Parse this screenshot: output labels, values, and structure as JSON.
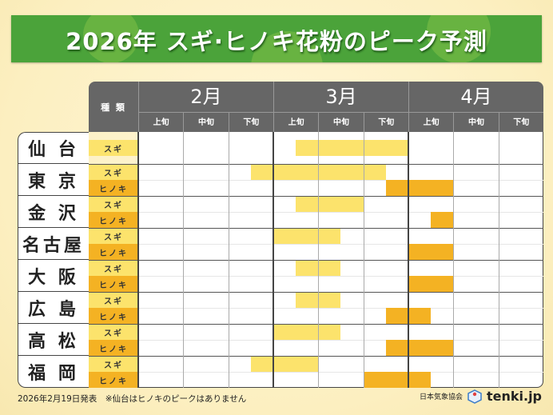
{
  "title": "2026年 スギ·ヒノキ花粉のピーク予測",
  "chart_data": {
    "type": "table",
    "title": "2026年 スギ·ヒノキ花粉のピーク予測",
    "type_header": "種 類",
    "months": [
      "2月",
      "3月",
      "4月"
    ],
    "decades": [
      "上旬",
      "中旬",
      "下旬"
    ],
    "colors": {
      "スギ": "#fce36c",
      "ヒノキ": "#f4b223"
    },
    "cities": [
      {
        "name": "仙 台",
        "rows": [
          {
            "type": "スギ",
            "start": "3月上旬",
            "start_offset": 0.5,
            "end": "3月下旬",
            "end_offset": 1.0
          }
        ]
      },
      {
        "name": "東 京",
        "rows": [
          {
            "type": "スギ",
            "start": "2月下旬",
            "start_offset": 0.5,
            "end": "3月下旬",
            "end_offset": 0.5
          },
          {
            "type": "ヒノキ",
            "start": "3月下旬",
            "start_offset": 0.5,
            "end": "4月上旬",
            "end_offset": 1.0
          }
        ]
      },
      {
        "name": "金 沢",
        "rows": [
          {
            "type": "スギ",
            "start": "3月上旬",
            "start_offset": 0.5,
            "end": "3月中旬",
            "end_offset": 1.0
          },
          {
            "type": "ヒノキ",
            "start": "4月上旬",
            "start_offset": 0.5,
            "end": "4月上旬",
            "end_offset": 1.0
          }
        ]
      },
      {
        "name": "名古屋",
        "rows": [
          {
            "type": "スギ",
            "start": "3月上旬",
            "start_offset": 0,
            "end": "3月中旬",
            "end_offset": 0.5
          },
          {
            "type": "ヒノキ",
            "start": "4月上旬",
            "start_offset": 0,
            "end": "4月上旬",
            "end_offset": 1.0
          }
        ]
      },
      {
        "name": "大 阪",
        "rows": [
          {
            "type": "スギ",
            "start": "3月上旬",
            "start_offset": 0.5,
            "end": "3月中旬",
            "end_offset": 0.5
          },
          {
            "type": "ヒノキ",
            "start": "4月上旬",
            "start_offset": 0,
            "end": "4月上旬",
            "end_offset": 1.0
          }
        ]
      },
      {
        "name": "広 島",
        "rows": [
          {
            "type": "スギ",
            "start": "3月上旬",
            "start_offset": 0.5,
            "end": "3月中旬",
            "end_offset": 0.5
          },
          {
            "type": "ヒノキ",
            "start": "3月下旬",
            "start_offset": 0.5,
            "end": "4月上旬",
            "end_offset": 0.5
          }
        ]
      },
      {
        "name": "高 松",
        "rows": [
          {
            "type": "スギ",
            "start": "3月上旬",
            "start_offset": 0,
            "end": "3月中旬",
            "end_offset": 0.5
          },
          {
            "type": "ヒノキ",
            "start": "3月下旬",
            "start_offset": 0.5,
            "end": "4月上旬",
            "end_offset": 1.0
          }
        ]
      },
      {
        "name": "福 岡",
        "rows": [
          {
            "type": "スギ",
            "start": "2月下旬",
            "start_offset": 0.5,
            "end": "3月上旬",
            "end_offset": 1.0
          },
          {
            "type": "ヒノキ",
            "start": "3月下旬",
            "start_offset": 0,
            "end": "4月上旬",
            "end_offset": 0.5
          }
        ]
      }
    ]
  },
  "footer": {
    "note": "2026年2月19日発表　※仙台はヒノキのピークはありません",
    "org": "日本気象協会",
    "logo": "tenki.jp"
  }
}
